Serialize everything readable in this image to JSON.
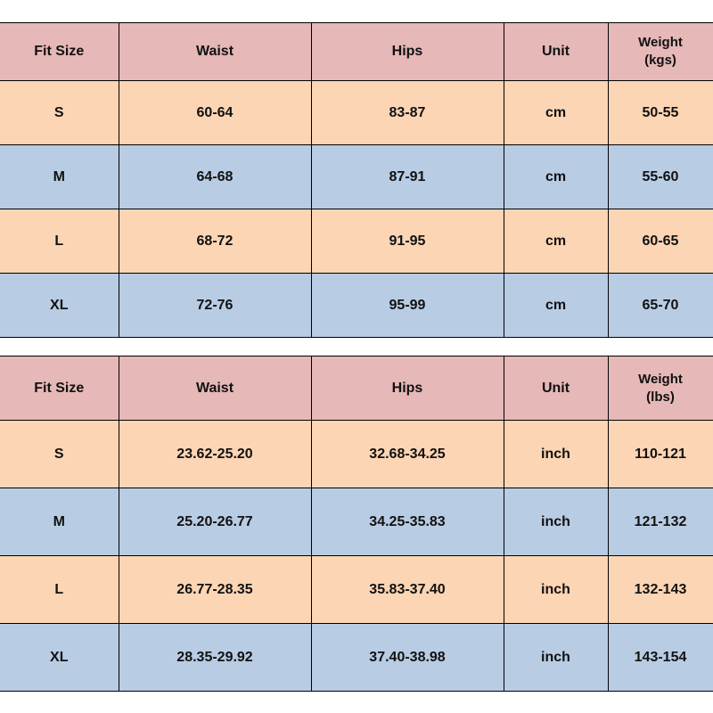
{
  "colors": {
    "header": "#e6b8b8",
    "row_odd": "#fcd5b4",
    "row_even": "#b8cce4"
  },
  "metric_table": {
    "headers": [
      "Fit Size",
      "Waist",
      "Hips",
      "Unit",
      "Weight",
      "(kgs)"
    ],
    "rows": [
      [
        "S",
        "60-64",
        "83-87",
        "cm",
        "50-55"
      ],
      [
        "M",
        "64-68",
        "87-91",
        "cm",
        "55-60"
      ],
      [
        "L",
        "68-72",
        "91-95",
        "cm",
        "60-65"
      ],
      [
        "XL",
        "72-76",
        "95-99",
        "cm",
        "65-70"
      ]
    ]
  },
  "imperial_table": {
    "headers": [
      "Fit Size",
      "Waist",
      "Hips",
      "Unit",
      "Weight",
      "(lbs)"
    ],
    "rows": [
      [
        "S",
        "23.62-25.20",
        "32.68-34.25",
        "inch",
        "110-121"
      ],
      [
        "M",
        "25.20-26.77",
        "34.25-35.83",
        "inch",
        "121-132"
      ],
      [
        "L",
        "26.77-28.35",
        "35.83-37.40",
        "inch",
        "132-143"
      ],
      [
        "XL",
        "28.35-29.92",
        "37.40-38.98",
        "inch",
        "143-154"
      ]
    ]
  }
}
